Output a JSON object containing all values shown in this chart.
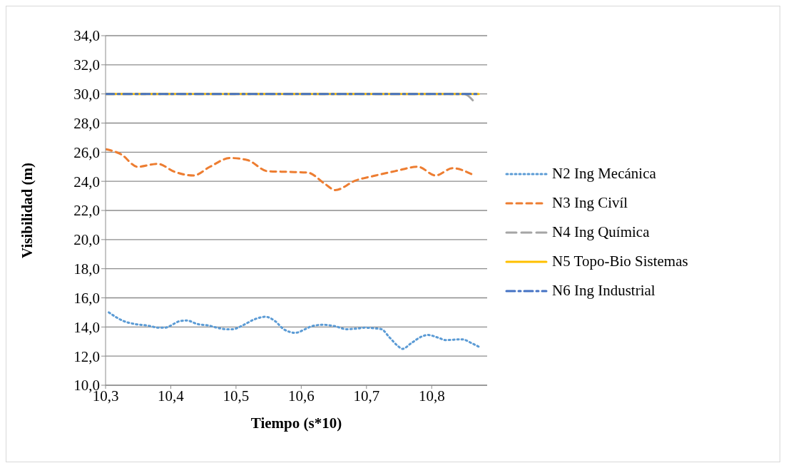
{
  "chart_data": {
    "type": "line",
    "xlabel": "Tiempo (s*10)",
    "ylabel": "Visibilidad (m)",
    "xlim": [
      10.3,
      10.885
    ],
    "xticks": [
      {
        "value": 10.3,
        "label": "10,3"
      },
      {
        "value": 10.4,
        "label": "10,4"
      },
      {
        "value": 10.5,
        "label": "10,5"
      },
      {
        "value": 10.6,
        "label": "10,6"
      },
      {
        "value": 10.7,
        "label": "10,7"
      },
      {
        "value": 10.8,
        "label": "10,8"
      }
    ],
    "ylim": [
      10,
      34
    ],
    "yticks": [
      {
        "value": 10,
        "label": "10,0"
      },
      {
        "value": 12,
        "label": "12,0"
      },
      {
        "value": 14,
        "label": "14,0"
      },
      {
        "value": 16,
        "label": "16,0"
      },
      {
        "value": 18,
        "label": "18,0"
      },
      {
        "value": 20,
        "label": "20,0"
      },
      {
        "value": 22,
        "label": "22,0"
      },
      {
        "value": 24,
        "label": "24,0"
      },
      {
        "value": 26,
        "label": "26,0"
      },
      {
        "value": 28,
        "label": "28,0"
      },
      {
        "value": 30,
        "label": "30,0"
      },
      {
        "value": 32,
        "label": "32,0"
      },
      {
        "value": 34,
        "label": "34,0"
      }
    ],
    "grid": "y",
    "legend": "right",
    "marker": "none",
    "series": [
      {
        "name": "N2 Ing Mecánica",
        "color": "#5b9bd5",
        "line_style": "dotted",
        "x": [
          10.305,
          10.328,
          10.345,
          10.364,
          10.382,
          10.39,
          10.414,
          10.424,
          10.441,
          10.458,
          10.476,
          10.485,
          10.495,
          10.512,
          10.527,
          10.545,
          10.56,
          10.573,
          10.591,
          10.606,
          10.616,
          10.633,
          10.652,
          10.669,
          10.687,
          10.696,
          10.714,
          10.723,
          10.735,
          10.748,
          10.755,
          10.769,
          10.785,
          10.794,
          10.811,
          10.821,
          10.846,
          10.863,
          10.872
        ],
        "values": [
          15.0,
          14.4,
          14.2,
          14.1,
          13.95,
          13.95,
          14.4,
          14.45,
          14.2,
          14.1,
          13.9,
          13.85,
          13.85,
          14.15,
          14.5,
          14.7,
          14.4,
          13.85,
          13.6,
          13.85,
          14.05,
          14.15,
          14.05,
          13.85,
          13.9,
          13.95,
          13.9,
          13.85,
          13.3,
          12.7,
          12.5,
          12.9,
          13.35,
          13.45,
          13.25,
          13.1,
          13.15,
          12.85,
          12.65
        ]
      },
      {
        "name": "N3 Ing Civíl",
        "color": "#ed7d31",
        "line_style": "dashed",
        "x": [
          10.301,
          10.324,
          10.349,
          10.38,
          10.406,
          10.435,
          10.46,
          10.491,
          10.518,
          10.548,
          10.579,
          10.61,
          10.637,
          10.652,
          10.683,
          10.714,
          10.744,
          10.779,
          10.806,
          10.832,
          10.863
        ],
        "values": [
          26.2,
          25.85,
          25.0,
          25.2,
          24.65,
          24.4,
          25.0,
          25.6,
          25.45,
          24.7,
          24.65,
          24.6,
          23.8,
          23.4,
          24.05,
          24.4,
          24.7,
          25.0,
          24.4,
          24.9,
          24.45
        ]
      },
      {
        "name": "N4 Ing Química",
        "color": "#a5a5a5",
        "line_style": "longdash",
        "x": [
          10.3,
          10.849,
          10.866
        ],
        "values": [
          30,
          30,
          29.4
        ]
      },
      {
        "name": "N5 Topo-Bio Sistemas",
        "color": "#ffc000",
        "line_style": "solid",
        "x": [
          10.3,
          10.872
        ],
        "values": [
          30,
          30
        ]
      },
      {
        "name": "N6 Ing Industrial",
        "color": "#4472c4",
        "line_style": "dashdot",
        "x": [
          10.3,
          10.872
        ],
        "values": [
          30,
          30
        ]
      }
    ]
  }
}
